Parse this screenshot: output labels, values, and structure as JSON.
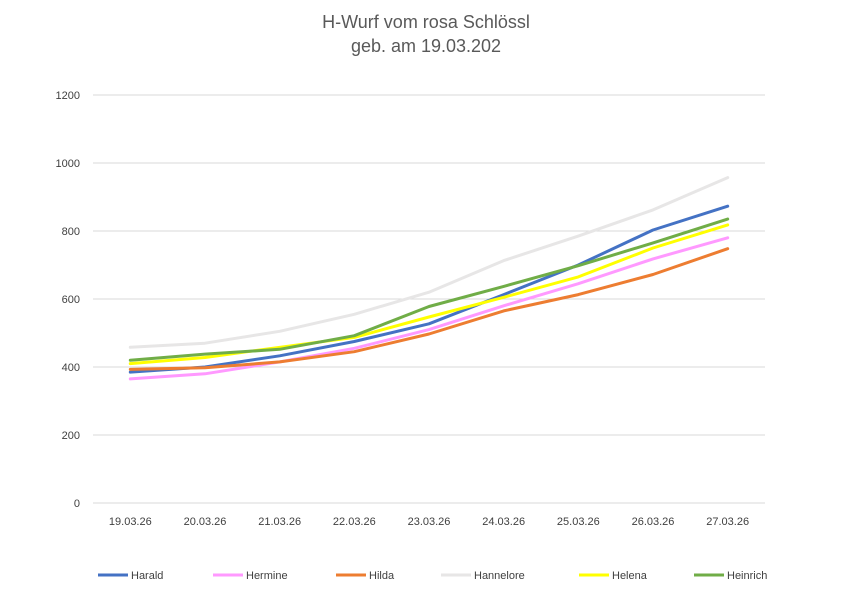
{
  "chart_data": {
    "type": "line",
    "title": "H-Wurf vom rosa Schlössl",
    "subtitle": "geb. am 19.03.202",
    "categories": [
      "19.03.26",
      "20.03.26",
      "21.03.26",
      "22.03.26",
      "23.03.26",
      "24.03.26",
      "25.03.26",
      "26.03.26",
      "27.03.26"
    ],
    "ylim": [
      0,
      1200
    ],
    "yticks": [
      0,
      200,
      400,
      600,
      800,
      1000,
      1200
    ],
    "grid": true,
    "legend": "bottom",
    "series": [
      {
        "name": "Harald",
        "color": "#4472C4",
        "values": [
          385,
          400,
          433,
          475,
          527,
          613,
          700,
          803,
          873
        ]
      },
      {
        "name": "Hermine",
        "color": "#FF99FF",
        "values": [
          365,
          380,
          415,
          455,
          510,
          580,
          645,
          718,
          780
        ]
      },
      {
        "name": "Hilda",
        "color": "#ED7D31",
        "values": [
          393,
          398,
          415,
          445,
          497,
          565,
          613,
          672,
          748
        ]
      },
      {
        "name": "Hannelore",
        "color": "#E7E6E6",
        "values": [
          458,
          470,
          505,
          555,
          620,
          713,
          785,
          862,
          957
        ]
      },
      {
        "name": "Helena",
        "color": "#FFFF00",
        "values": [
          410,
          428,
          458,
          487,
          547,
          605,
          665,
          750,
          818
        ]
      },
      {
        "name": "Heinrich",
        "color": "#70AD47",
        "values": [
          420,
          438,
          452,
          492,
          578,
          637,
          698,
          765,
          835
        ]
      }
    ]
  }
}
